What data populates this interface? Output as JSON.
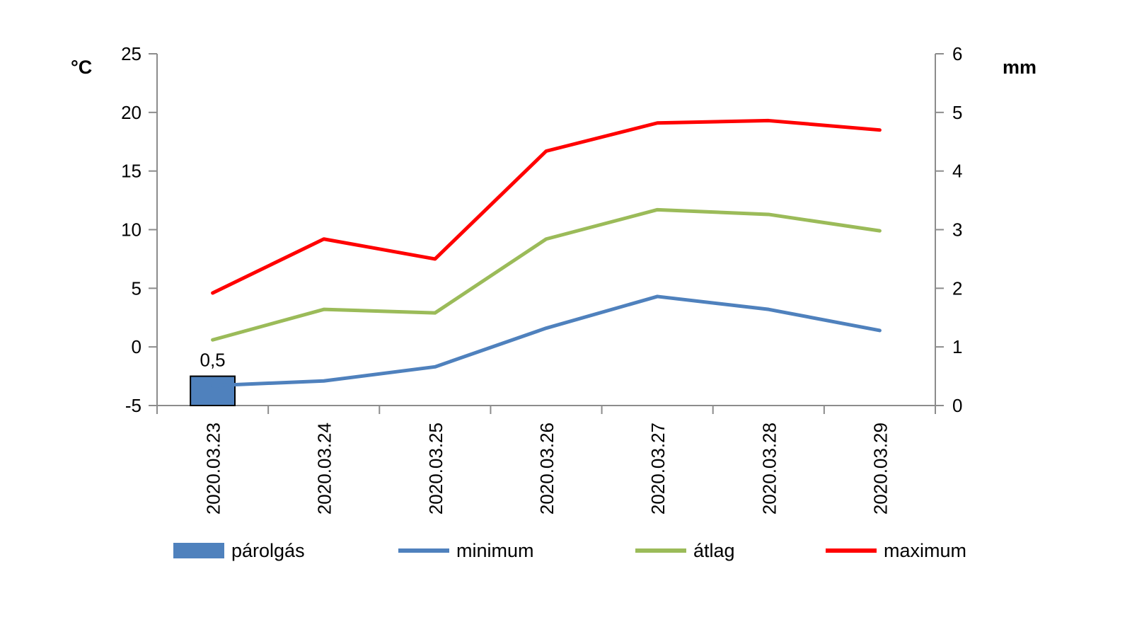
{
  "chart_data": {
    "type": "line",
    "title": "",
    "categories": [
      "2020.03.23",
      "2020.03.24",
      "2020.03.25",
      "2020.03.26",
      "2020.03.27",
      "2020.03.28",
      "2020.03.29"
    ],
    "y_left": {
      "unit": "°C",
      "range": [
        -5,
        25
      ],
      "ticks": [
        -5,
        0,
        5,
        10,
        15,
        20,
        25
      ]
    },
    "y_right": {
      "unit": "mm",
      "range": [
        0,
        6
      ],
      "ticks": [
        0,
        1,
        2,
        3,
        4,
        5,
        6
      ]
    },
    "grid": false,
    "legend_position": "bottom",
    "bar_series": [
      {
        "name": "párolgás",
        "axis": "right",
        "color": "#4f81bd",
        "values": [
          0.5,
          null,
          null,
          null,
          null,
          null,
          null
        ],
        "data_labels": [
          "0,5",
          null,
          null,
          null,
          null,
          null,
          null
        ]
      }
    ],
    "series": [
      {
        "name": "minimum",
        "axis": "left",
        "color": "#4f81bd",
        "values": [
          -3.3,
          -2.9,
          -1.7,
          1.6,
          4.3,
          3.2,
          1.4
        ]
      },
      {
        "name": "átlag",
        "axis": "left",
        "color": "#9bbb59",
        "values": [
          0.6,
          3.2,
          2.9,
          9.2,
          11.7,
          11.3,
          9.9
        ]
      },
      {
        "name": "maximum",
        "axis": "left",
        "color": "#ff0000",
        "values": [
          4.6,
          9.2,
          7.5,
          16.7,
          19.1,
          19.3,
          18.5
        ]
      }
    ]
  }
}
